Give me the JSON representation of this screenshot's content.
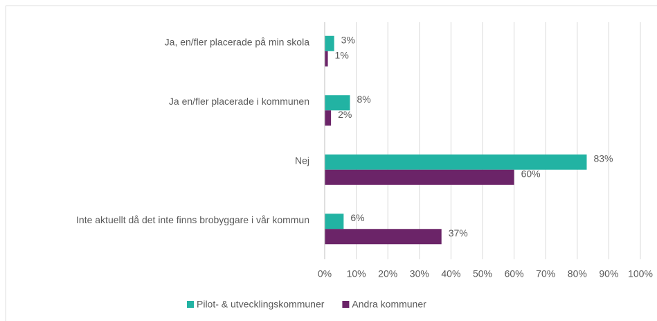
{
  "chart_data": {
    "type": "hbar",
    "categories": [
      "Ja, en/fler placerade på min skola",
      "Ja en/fler placerade i kommunen",
      "Nej",
      "Inte aktuellt då det inte finns brobyggare i vår kommun"
    ],
    "series": [
      {
        "name": "Pilot- & utvecklingskommuner",
        "color": "#22b3a3",
        "values": [
          3,
          8,
          83,
          6
        ],
        "value_labels": [
          "3%",
          "8%",
          "83%",
          "6%"
        ]
      },
      {
        "name": "Andra kommuner",
        "color": "#6b2468",
        "values": [
          1,
          2,
          60,
          37
        ],
        "value_labels": [
          "1%",
          "2%",
          "60%",
          "37%"
        ]
      }
    ],
    "xlim": [
      0,
      100
    ],
    "xticks": [
      {
        "value": 0,
        "label": "0%"
      },
      {
        "value": 10,
        "label": "10%"
      },
      {
        "value": 20,
        "label": "20%"
      },
      {
        "value": 30,
        "label": "30%"
      },
      {
        "value": 40,
        "label": "40%"
      },
      {
        "value": 50,
        "label": "50%"
      },
      {
        "value": 60,
        "label": "60%"
      },
      {
        "value": 70,
        "label": "70%"
      },
      {
        "value": 80,
        "label": "80%"
      },
      {
        "value": 90,
        "label": "90%"
      },
      {
        "value": 100,
        "label": "100%"
      }
    ],
    "grid": true,
    "legend": "bottom"
  }
}
